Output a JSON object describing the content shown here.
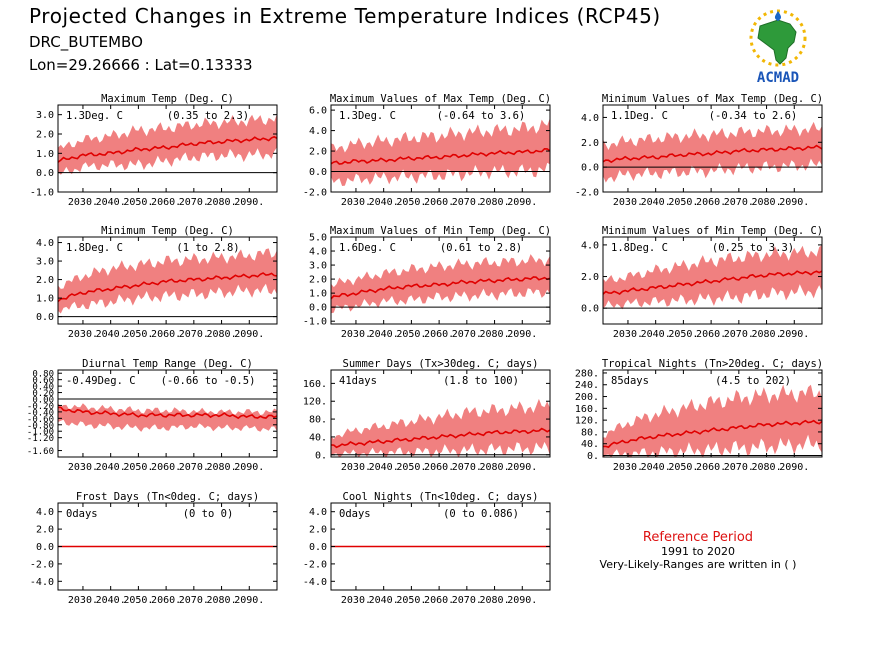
{
  "header": {
    "title": "Projected Changes in Extreme Temperature Indices (RCP45)",
    "station": "DRC_BUTEMBO",
    "coords": "Lon=29.26666 : Lat=0.13333"
  },
  "logo": {
    "text": "ACMAD",
    "icon": "africa-sun-logo"
  },
  "reference": {
    "title": "Reference Period",
    "years": "1991 to 2020",
    "note": "Very-Likely-Ranges are written in ( )"
  },
  "colors": {
    "band": "#f08080",
    "line": "#e00000",
    "zero": "#000000"
  },
  "chart_data": [
    {
      "type": "area",
      "title": "Maximum Temp (Deg. C)",
      "summary": "1.3Deg. C",
      "range": "(0.35 to 2.3)",
      "ylim": [
        -1.0,
        3.5
      ],
      "yticks": [
        -1.0,
        0.0,
        1.0,
        2.0,
        3.0
      ],
      "ytick_labels": [
        "-1.0",
        "0.0",
        "1.0",
        "2.0",
        "3.0"
      ],
      "xlim": [
        2021,
        2100
      ],
      "xticks": [
        2030,
        2040,
        2050,
        2060,
        2070,
        2080,
        2090
      ],
      "xtick_labels": [
        "2030.",
        "2040.",
        "2050.",
        "2060.",
        "2070.",
        "2080.",
        "2090."
      ],
      "x": [
        2021,
        2030,
        2040,
        2050,
        2060,
        2070,
        2080,
        2090,
        2100
      ],
      "series": [
        {
          "role": "median",
          "values": [
            0.6,
            0.9,
            1.0,
            1.2,
            1.3,
            1.5,
            1.6,
            1.7,
            1.8
          ]
        },
        {
          "role": "upper",
          "values": [
            1.2,
            1.7,
            1.9,
            2.2,
            2.3,
            2.5,
            2.6,
            2.7,
            2.8
          ]
        },
        {
          "role": "lower",
          "values": [
            -0.1,
            0.3,
            0.4,
            0.4,
            0.6,
            0.8,
            0.9,
            0.9,
            1.0
          ]
        }
      ]
    },
    {
      "type": "area",
      "title": "Maximum Values of Max Temp (Deg. C)",
      "summary": "1.3Deg. C",
      "range": "(-0.64 to 3.6)",
      "ylim": [
        -2.0,
        6.5
      ],
      "yticks": [
        -2.0,
        0.0,
        2.0,
        4.0,
        6.0
      ],
      "ytick_labels": [
        "-2.0",
        "0.0",
        "2.0",
        "4.0",
        "6.0"
      ],
      "xlim": [
        2021,
        2100
      ],
      "xticks": [
        2030,
        2040,
        2050,
        2060,
        2070,
        2080,
        2090
      ],
      "xtick_labels": [
        "2030.",
        "2040.",
        "2050.",
        "2060.",
        "2070.",
        "2080.",
        "2090."
      ],
      "x": [
        2021,
        2030,
        2040,
        2050,
        2060,
        2070,
        2080,
        2090,
        2100
      ],
      "series": [
        {
          "role": "median",
          "values": [
            0.8,
            1.0,
            1.1,
            1.3,
            1.4,
            1.6,
            1.8,
            1.9,
            2.1
          ]
        },
        {
          "role": "upper",
          "values": [
            2.2,
            2.7,
            3.0,
            3.3,
            3.5,
            3.8,
            4.0,
            4.2,
            4.6
          ]
        },
        {
          "role": "lower",
          "values": [
            -1.0,
            -0.8,
            -0.6,
            -0.5,
            -0.4,
            -0.2,
            0.0,
            0.0,
            0.2
          ]
        }
      ]
    },
    {
      "type": "area",
      "title": "Minimum Values of Max Temp (Deg. C)",
      "summary": "1.1Deg. C",
      "range": "(-0.34 to 2.6)",
      "ylim": [
        -2.0,
        5.0
      ],
      "yticks": [
        -2.0,
        0.0,
        2.0,
        4.0
      ],
      "ytick_labels": [
        "-2.0",
        "0.0",
        "2.0",
        "4.0"
      ],
      "xlim": [
        2021,
        2100
      ],
      "xticks": [
        2030,
        2040,
        2050,
        2060,
        2070,
        2080,
        2090
      ],
      "xtick_labels": [
        "2030.",
        "2040.",
        "2050.",
        "2060.",
        "2070.",
        "2080.",
        "2090."
      ],
      "x": [
        2021,
        2030,
        2040,
        2050,
        2060,
        2070,
        2080,
        2090,
        2100
      ],
      "series": [
        {
          "role": "median",
          "values": [
            0.5,
            0.7,
            0.8,
            1.0,
            1.1,
            1.3,
            1.4,
            1.5,
            1.6
          ]
        },
        {
          "role": "upper",
          "values": [
            1.8,
            2.1,
            2.3,
            2.5,
            2.6,
            2.8,
            2.9,
            3.0,
            3.1
          ]
        },
        {
          "role": "lower",
          "values": [
            -0.9,
            -0.6,
            -0.5,
            -0.4,
            -0.3,
            -0.1,
            0.0,
            0.1,
            0.2
          ]
        }
      ]
    },
    {
      "type": "area",
      "title": "Minimum Temp (Deg. C)",
      "summary": "1.8Deg. C",
      "range": "(1 to 2.8)",
      "ylim": [
        -0.4,
        4.3
      ],
      "yticks": [
        0.0,
        1.0,
        2.0,
        3.0,
        4.0
      ],
      "ytick_labels": [
        "0.0",
        "1.0",
        "2.0",
        "3.0",
        "4.0"
      ],
      "xlim": [
        2021,
        2100
      ],
      "xticks": [
        2030,
        2040,
        2050,
        2060,
        2070,
        2080,
        2090
      ],
      "xtick_labels": [
        "2030.",
        "2040.",
        "2050.",
        "2060.",
        "2070.",
        "2080.",
        "2090."
      ],
      "x": [
        2021,
        2030,
        2040,
        2050,
        2060,
        2070,
        2080,
        2090,
        2100
      ],
      "series": [
        {
          "role": "median",
          "values": [
            0.9,
            1.3,
            1.5,
            1.7,
            1.9,
            2.0,
            2.1,
            2.2,
            2.3
          ]
        },
        {
          "role": "upper",
          "values": [
            1.6,
            2.2,
            2.6,
            2.8,
            3.0,
            3.1,
            3.2,
            3.3,
            3.5
          ]
        },
        {
          "role": "lower",
          "values": [
            0.4,
            0.6,
            0.8,
            1.0,
            1.1,
            1.2,
            1.3,
            1.4,
            1.4
          ]
        }
      ]
    },
    {
      "type": "area",
      "title": "Maximum Values of Min Temp (Deg. C)",
      "summary": "1.6Deg. C",
      "range": "(0.61 to 2.8)",
      "ylim": [
        -1.2,
        5.0
      ],
      "yticks": [
        -1.0,
        0.0,
        1.0,
        2.0,
        3.0,
        4.0,
        5.0
      ],
      "ytick_labels": [
        "-1.0",
        "0.0",
        "1.0",
        "2.0",
        "3.0",
        "4.0",
        "5.0"
      ],
      "xlim": [
        2021,
        2100
      ],
      "xticks": [
        2030,
        2040,
        2050,
        2060,
        2070,
        2080,
        2090
      ],
      "xtick_labels": [
        "2030.",
        "2040.",
        "2050.",
        "2060.",
        "2070.",
        "2080.",
        "2090."
      ],
      "x": [
        2021,
        2030,
        2040,
        2050,
        2060,
        2070,
        2080,
        2090,
        2100
      ],
      "series": [
        {
          "role": "median",
          "values": [
            0.7,
            1.0,
            1.3,
            1.5,
            1.6,
            1.8,
            1.9,
            2.0,
            2.1
          ]
        },
        {
          "role": "upper",
          "values": [
            1.6,
            2.0,
            2.4,
            2.7,
            2.9,
            3.1,
            3.2,
            3.3,
            3.4
          ]
        },
        {
          "role": "lower",
          "values": [
            -0.2,
            0.1,
            0.4,
            0.5,
            0.7,
            0.8,
            0.9,
            1.0,
            1.1
          ]
        }
      ]
    },
    {
      "type": "area",
      "title": "Minimum Values of Min Temp (Deg. C)",
      "summary": "1.8Deg. C",
      "range": "(0.25 to 3.3)",
      "ylim": [
        -1.0,
        4.5
      ],
      "yticks": [
        0.0,
        2.0,
        4.0
      ],
      "ytick_labels": [
        "0.0",
        "2.0",
        "4.0"
      ],
      "xlim": [
        2021,
        2100
      ],
      "xticks": [
        2030,
        2040,
        2050,
        2060,
        2070,
        2080,
        2090
      ],
      "xtick_labels": [
        "2030.",
        "2040.",
        "2050.",
        "2060.",
        "2070.",
        "2080.",
        "2090."
      ],
      "x": [
        2021,
        2030,
        2040,
        2050,
        2060,
        2070,
        2080,
        2090,
        2100
      ],
      "series": [
        {
          "role": "median",
          "values": [
            0.9,
            1.1,
            1.3,
            1.5,
            1.7,
            1.9,
            2.1,
            2.2,
            2.3
          ]
        },
        {
          "role": "upper",
          "values": [
            1.7,
            2.0,
            2.4,
            2.7,
            3.0,
            3.2,
            3.4,
            3.5,
            3.6
          ]
        },
        {
          "role": "lower",
          "values": [
            0.1,
            0.3,
            0.4,
            0.5,
            0.6,
            0.7,
            0.9,
            1.0,
            1.1
          ]
        }
      ]
    },
    {
      "type": "area",
      "title": "Diurnal Temp Range (Deg. C)",
      "summary": "-0.49Deg. C",
      "range": "(-0.66 to -0.5)",
      "ylim": [
        -1.8,
        0.9
      ],
      "yticks": [
        -1.6,
        -1.2,
        -1.0,
        -0.8,
        -0.6,
        -0.4,
        -0.2,
        0.0,
        0.2,
        0.4,
        0.6,
        0.8
      ],
      "ytick_labels": [
        "-1.60",
        "-1.20",
        "-1.00",
        "-0.80",
        "-0.60",
        "-0.40",
        "-0.20",
        "0.00",
        "0.20",
        "0.40",
        "0.60",
        "0.80"
      ],
      "xlim": [
        2021,
        2100
      ],
      "xticks": [
        2030,
        2040,
        2050,
        2060,
        2070,
        2080,
        2090
      ],
      "xtick_labels": [
        "2030.",
        "2040.",
        "2050.",
        "2060.",
        "2070.",
        "2080.",
        "2090."
      ],
      "x": [
        2021,
        2030,
        2040,
        2050,
        2060,
        2070,
        2080,
        2090,
        2100
      ],
      "series": [
        {
          "role": "median",
          "values": [
            -0.3,
            -0.4,
            -0.45,
            -0.5,
            -0.5,
            -0.5,
            -0.5,
            -0.55,
            -0.55
          ]
        },
        {
          "role": "upper",
          "values": [
            -0.2,
            -0.25,
            -0.3,
            -0.35,
            -0.35,
            -0.38,
            -0.4,
            -0.4,
            -0.4
          ]
        },
        {
          "role": "lower",
          "values": [
            -0.7,
            -0.8,
            -0.85,
            -0.9,
            -0.9,
            -0.85,
            -0.9,
            -0.9,
            -0.95
          ]
        }
      ]
    },
    {
      "type": "area",
      "title": "Summer Days (Tx>30deg. C; days)",
      "summary": "41days",
      "range": "(1.8 to 100)",
      "ylim": [
        -5,
        190
      ],
      "yticks": [
        0,
        40,
        80,
        120,
        160
      ],
      "ytick_labels": [
        "0.",
        "40.",
        "80.",
        "120.",
        "160."
      ],
      "xlim": [
        2021,
        2100
      ],
      "xticks": [
        2030,
        2040,
        2050,
        2060,
        2070,
        2080,
        2090
      ],
      "xtick_labels": [
        "2030.",
        "2040.",
        "2050.",
        "2060.",
        "2070.",
        "2080.",
        "2090."
      ],
      "x": [
        2021,
        2030,
        2040,
        2050,
        2060,
        2070,
        2080,
        2090,
        2100
      ],
      "series": [
        {
          "role": "median",
          "values": [
            20,
            25,
            30,
            35,
            40,
            45,
            50,
            52,
            55
          ]
        },
        {
          "role": "upper",
          "values": [
            40,
            55,
            65,
            75,
            85,
            95,
            100,
            105,
            110
          ]
        },
        {
          "role": "lower",
          "values": [
            2,
            3,
            5,
            6,
            8,
            10,
            12,
            14,
            15
          ]
        }
      ]
    },
    {
      "type": "area",
      "title": "Tropical Nights (Tn>20deg. C; days)",
      "summary": "85days",
      "range": "(4.5 to 202)",
      "ylim": [
        -5,
        290
      ],
      "yticks": [
        0,
        40,
        80,
        120,
        160,
        200,
        240,
        280
      ],
      "ytick_labels": [
        "0.",
        "40.",
        "80.",
        "120.",
        "160.",
        "200.",
        "240.",
        "280."
      ],
      "xlim": [
        2021,
        2100
      ],
      "xticks": [
        2030,
        2040,
        2050,
        2060,
        2070,
        2080,
        2090
      ],
      "xtick_labels": [
        "2030.",
        "2040.",
        "2050.",
        "2060.",
        "2070.",
        "2080.",
        "2090."
      ],
      "x": [
        2021,
        2030,
        2040,
        2050,
        2060,
        2070,
        2080,
        2090,
        2100
      ],
      "series": [
        {
          "role": "median",
          "values": [
            30,
            50,
            65,
            75,
            85,
            95,
            105,
            110,
            115
          ]
        },
        {
          "role": "upper",
          "values": [
            70,
            110,
            140,
            160,
            180,
            195,
            205,
            210,
            215
          ]
        },
        {
          "role": "lower",
          "values": [
            2,
            5,
            10,
            15,
            20,
            25,
            30,
            35,
            40
          ]
        }
      ]
    },
    {
      "type": "line",
      "title": "Frost Days (Tn<0deg. C; days)",
      "summary": "0days",
      "range": "(0 to 0)",
      "ylim": [
        -5.0,
        5.0
      ],
      "yticks": [
        -4.0,
        -2.0,
        0.0,
        2.0,
        4.0
      ],
      "ytick_labels": [
        "-4.0",
        "-2.0",
        "0.0",
        "2.0",
        "4.0"
      ],
      "xlim": [
        2021,
        2100
      ],
      "xticks": [
        2030,
        2040,
        2050,
        2060,
        2070,
        2080,
        2090
      ],
      "xtick_labels": [
        "2030.",
        "2040.",
        "2050.",
        "2060.",
        "2070.",
        "2080.",
        "2090."
      ],
      "x": [
        2021,
        2100
      ],
      "series": [
        {
          "role": "median",
          "values": [
            0,
            0
          ]
        },
        {
          "role": "upper",
          "values": [
            0,
            0
          ]
        },
        {
          "role": "lower",
          "values": [
            0,
            0
          ]
        }
      ]
    },
    {
      "type": "line",
      "title": "Cool Nights (Tn<10deg. C; days)",
      "summary": "0days",
      "range": "(0 to 0.086)",
      "ylim": [
        -5.0,
        5.0
      ],
      "yticks": [
        -4.0,
        -2.0,
        0.0,
        2.0,
        4.0
      ],
      "ytick_labels": [
        "-4.0",
        "-2.0",
        "0.0",
        "2.0",
        "4.0"
      ],
      "xlim": [
        2021,
        2100
      ],
      "xticks": [
        2030,
        2040,
        2050,
        2060,
        2070,
        2080,
        2090
      ],
      "xtick_labels": [
        "2030.",
        "2040.",
        "2050.",
        "2060.",
        "2070.",
        "2080.",
        "2090."
      ],
      "x": [
        2021,
        2100
      ],
      "series": [
        {
          "role": "median",
          "values": [
            0,
            0
          ]
        },
        {
          "role": "upper",
          "values": [
            0.05,
            0.05
          ]
        },
        {
          "role": "lower",
          "values": [
            0,
            0
          ]
        }
      ]
    }
  ]
}
